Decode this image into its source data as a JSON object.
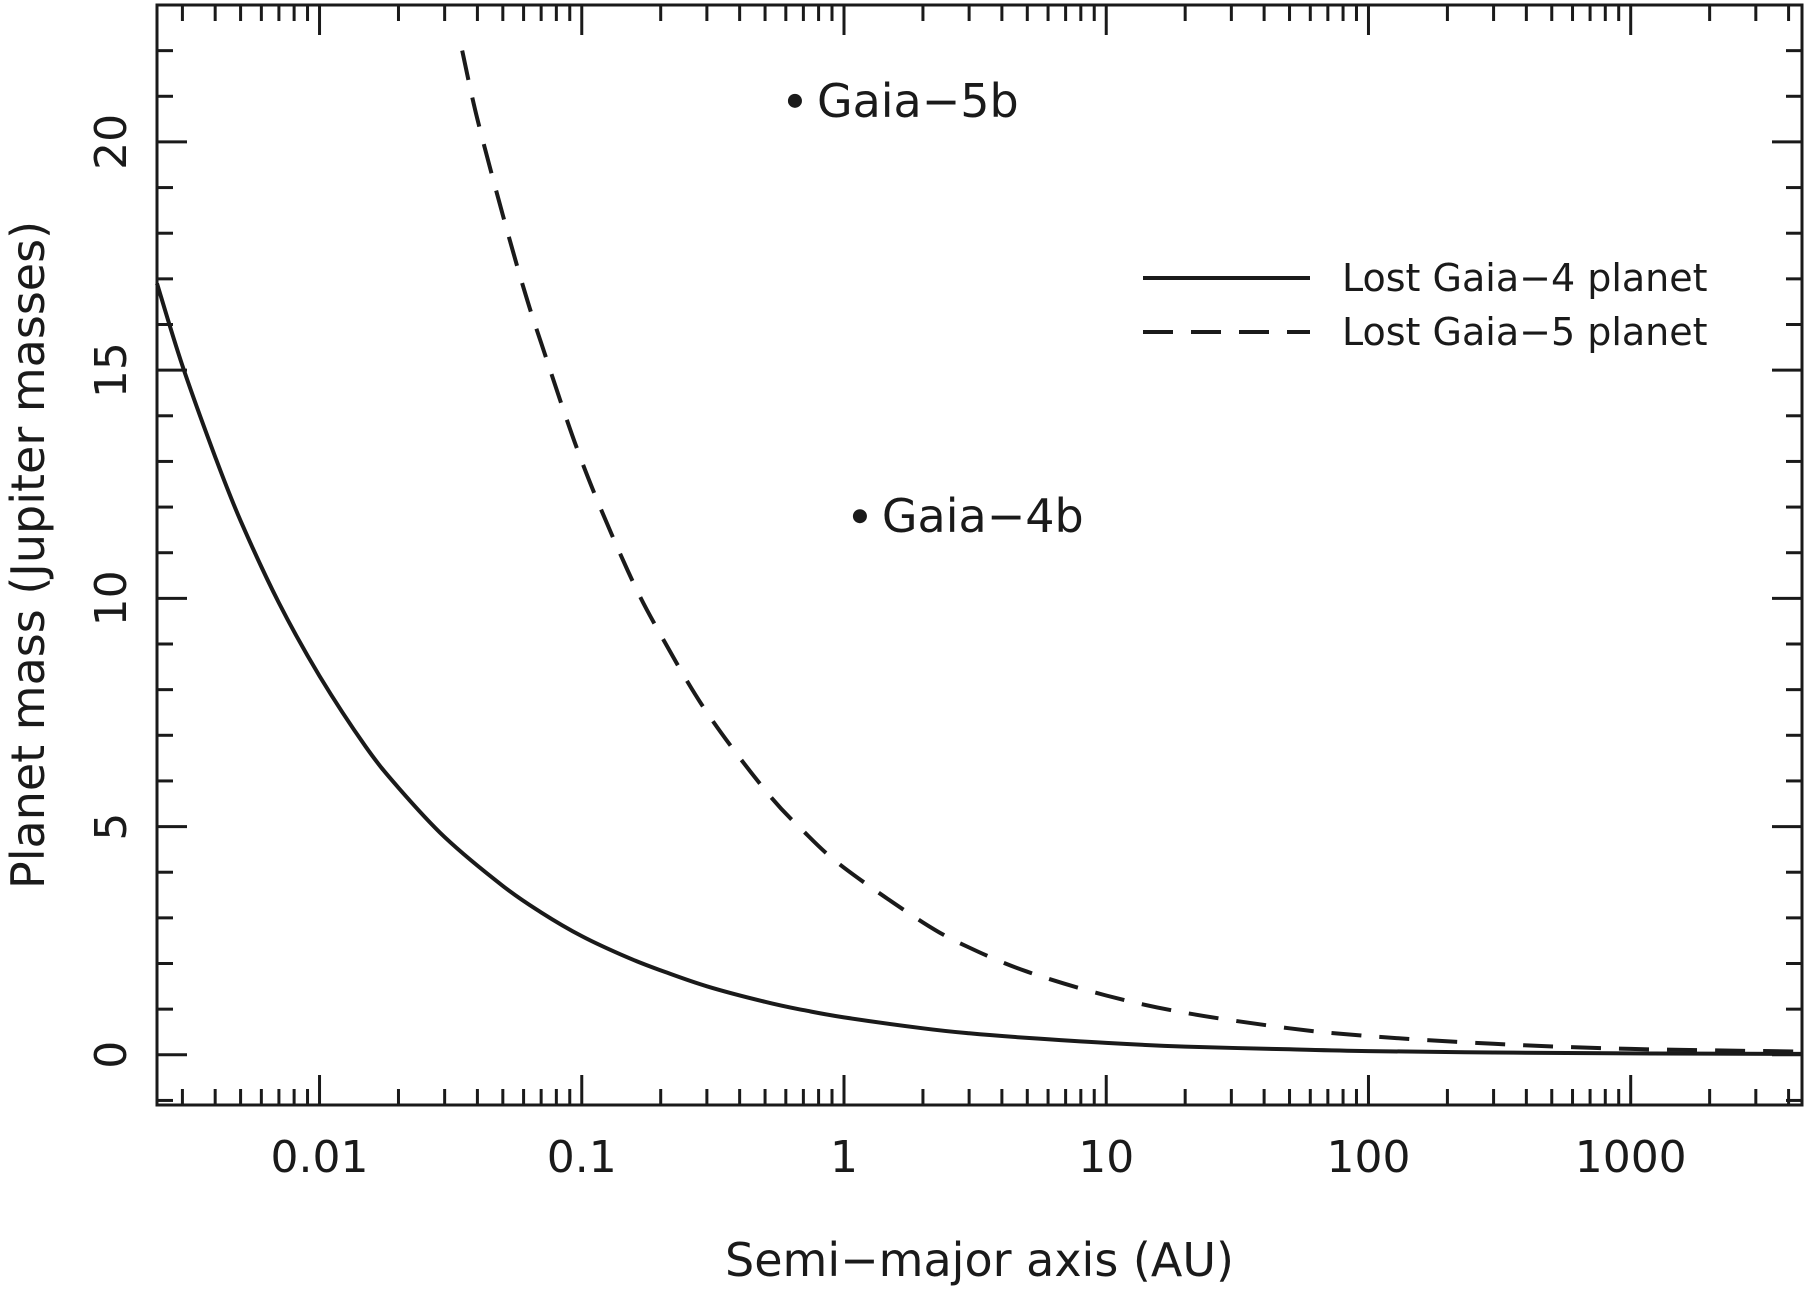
{
  "chart_data": {
    "type": "line",
    "title": "",
    "xlabel": "Semi−major axis (AU)",
    "ylabel": "Planet mass (Jupiter masses)",
    "xscale": "log",
    "xlim": [
      0.0024,
      4500
    ],
    "ylim": [
      -1.1,
      23
    ],
    "x_ticks": [
      {
        "value": 0.01,
        "label": "0.01"
      },
      {
        "value": 0.1,
        "label": "0.1"
      },
      {
        "value": 1,
        "label": "1"
      },
      {
        "value": 10,
        "label": "10"
      },
      {
        "value": 100,
        "label": "100"
      },
      {
        "value": 1000,
        "label": "1000"
      }
    ],
    "y_ticks": [
      {
        "value": 0,
        "label": "0"
      },
      {
        "value": 5,
        "label": "5"
      },
      {
        "value": 10,
        "label": "10"
      },
      {
        "value": 15,
        "label": "15"
      },
      {
        "value": 20,
        "label": "20"
      }
    ],
    "y_minor_step": 1,
    "legend_position": "top-right",
    "series": [
      {
        "name": "Lost Gaia−4 planet",
        "style": "solid",
        "color": "#1a1a1a",
        "x": [
          0.0024,
          0.003,
          0.004,
          0.005,
          0.007,
          0.01,
          0.015,
          0.02,
          0.03,
          0.05,
          0.07,
          0.1,
          0.15,
          0.2,
          0.3,
          0.5,
          0.7,
          1,
          2,
          3,
          5,
          10,
          20,
          50,
          100,
          300,
          1000,
          4500
        ],
        "values": [
          16.9,
          15.1,
          13.1,
          11.7,
          9.9,
          8.3,
          6.75,
          5.85,
          4.77,
          3.7,
          3.12,
          2.6,
          2.13,
          1.85,
          1.5,
          1.16,
          0.98,
          0.82,
          0.58,
          0.47,
          0.37,
          0.26,
          0.18,
          0.12,
          0.08,
          0.05,
          0.03,
          0.02
        ]
      },
      {
        "name": "Lost Gaia−5 planet",
        "style": "dashed",
        "color": "#1a1a1a",
        "x": [
          0.035,
          0.04,
          0.05,
          0.06,
          0.07,
          0.1,
          0.15,
          0.2,
          0.3,
          0.5,
          0.7,
          1,
          2,
          3,
          5,
          10,
          20,
          50,
          100,
          300,
          1000,
          4500
        ],
        "values": [
          22,
          20.5,
          18.4,
          16.8,
          15.6,
          13.0,
          10.6,
          9.2,
          7.5,
          5.8,
          4.9,
          4.1,
          2.9,
          2.35,
          1.82,
          1.3,
          0.92,
          0.58,
          0.41,
          0.24,
          0.13,
          0.07
        ]
      }
    ],
    "points": [
      {
        "name": "Gaia−5b",
        "x": 0.65,
        "y": 20.9
      },
      {
        "name": "Gaia−4b",
        "x": 1.15,
        "y": 11.8
      }
    ]
  }
}
